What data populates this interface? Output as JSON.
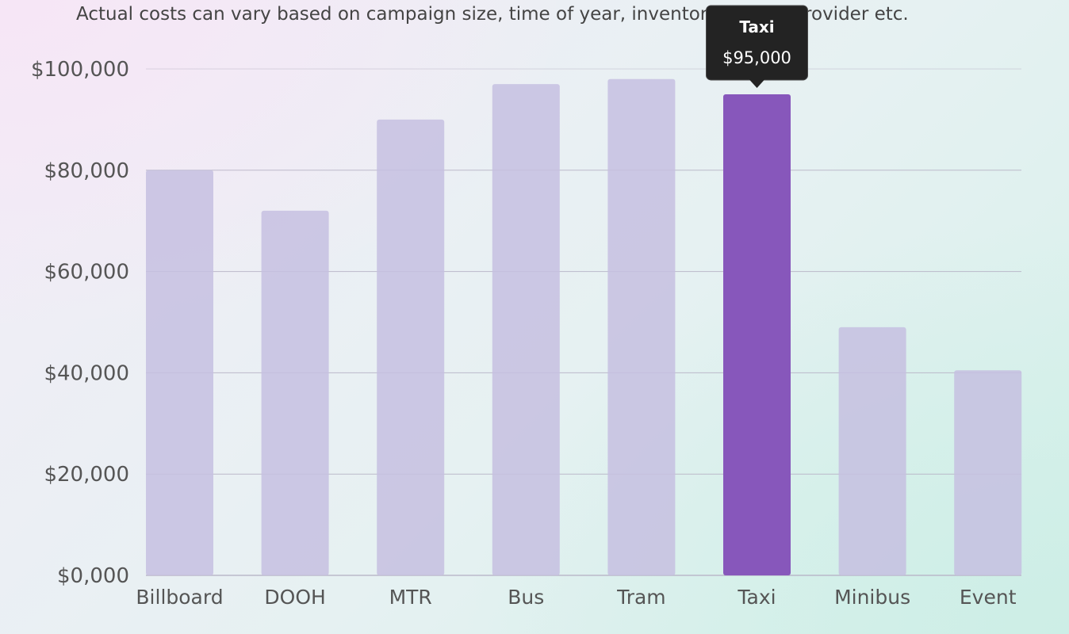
{
  "subtitle": "Actual costs can vary based on campaign size, time of year, inventory, media provider etc.",
  "colors": {
    "bar": "#c6bfe0",
    "bar_highlight": "#8757bb",
    "tooltip_bg": "#232323",
    "grid": "#b7b3c6",
    "text": "#555555"
  },
  "tooltip": {
    "category": "Taxi",
    "title": "Taxi",
    "value": "$95,000"
  },
  "chart_data": {
    "type": "bar",
    "categories": [
      "Billboard",
      "DOOH",
      "MTR",
      "Bus",
      "Tram",
      "Taxi",
      "Minibus",
      "Event"
    ],
    "values": [
      80000,
      72000,
      90000,
      97000,
      98000,
      95000,
      49000,
      40500
    ],
    "ylim": [
      0,
      100000
    ],
    "yticks": [
      0,
      20000,
      40000,
      60000,
      80000,
      100000
    ],
    "ytick_labels": [
      "$0,000",
      "$20,000",
      "$40,000",
      "$60,000",
      "$80,000",
      "$100,000"
    ],
    "grid": true,
    "highlighted": "Taxi"
  }
}
